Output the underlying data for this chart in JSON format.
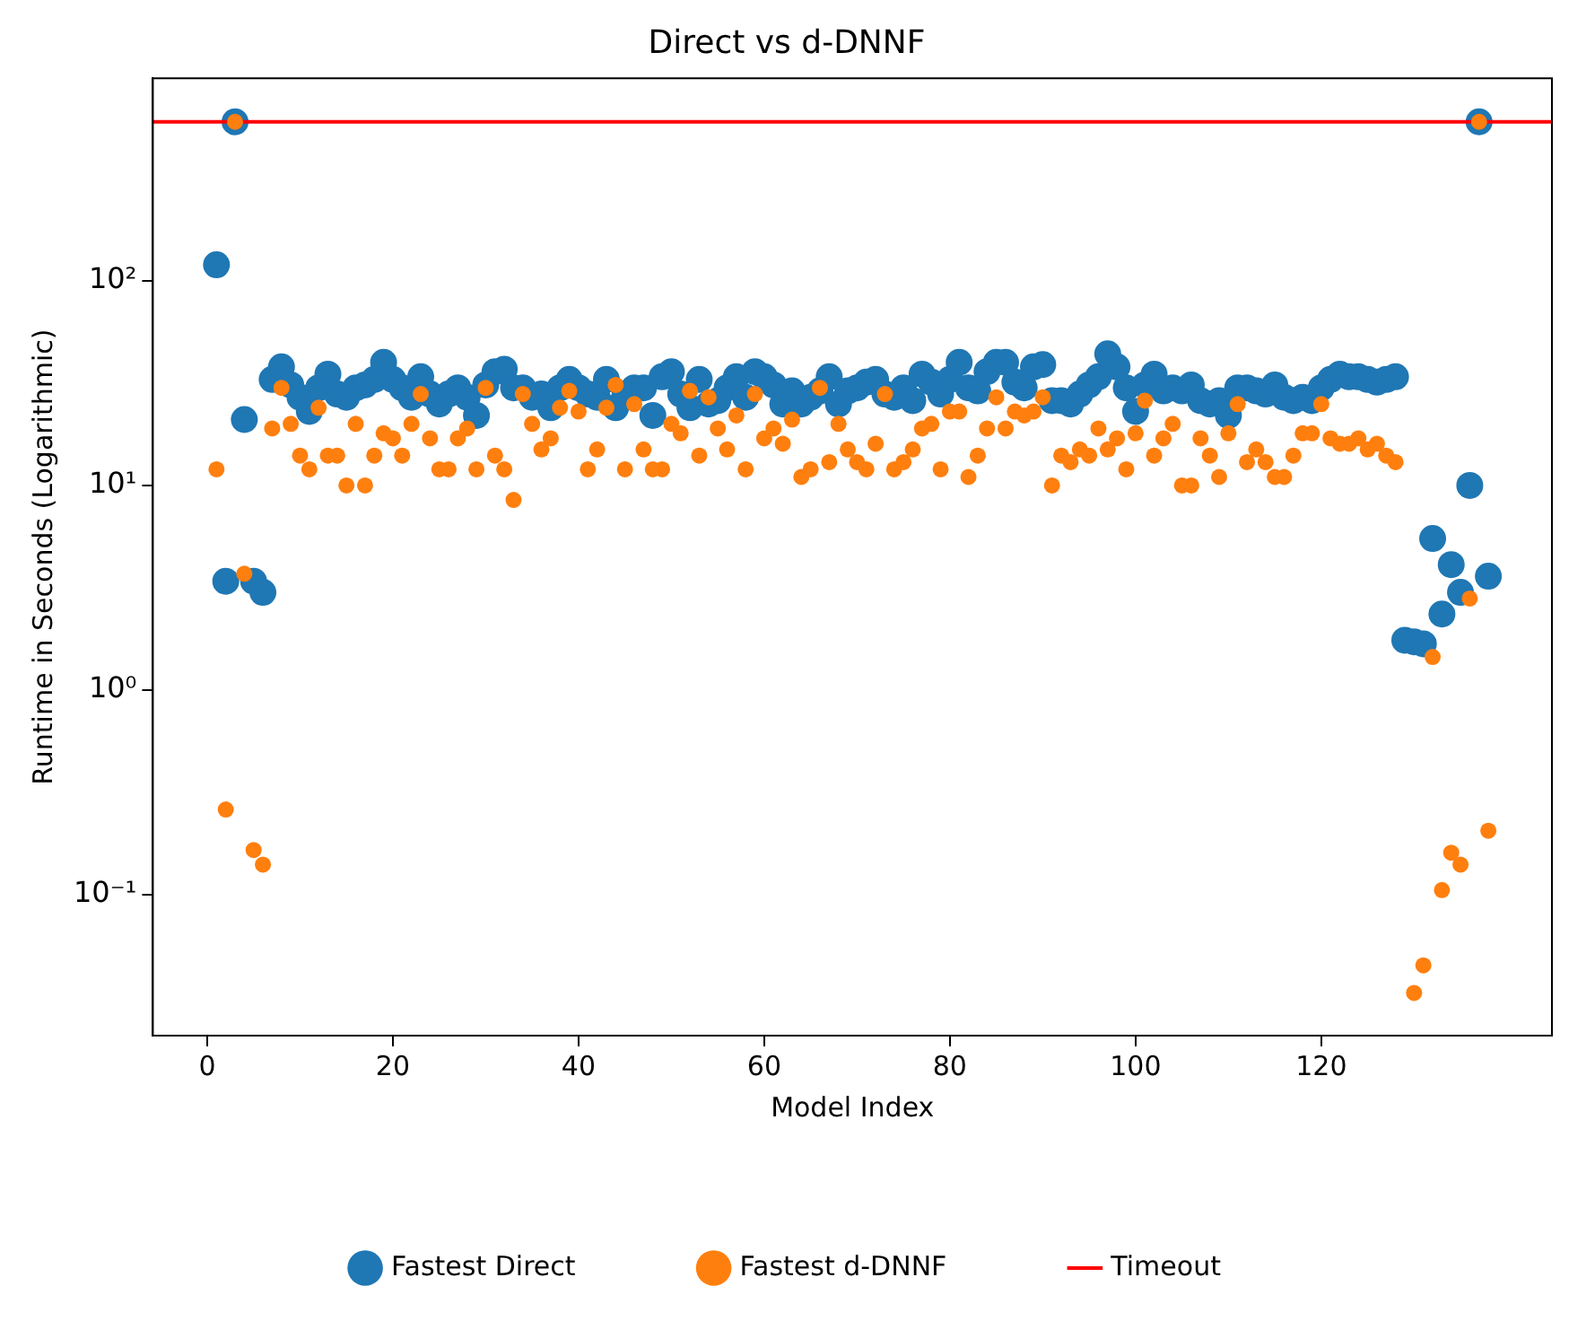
{
  "chart_data": {
    "type": "scatter",
    "title": "Direct vs d-DNNF",
    "xlabel": "Model Index",
    "ylabel": "Runtime in Seconds (Logarithmic)",
    "x": [
      1,
      2,
      3,
      4,
      5,
      6,
      7,
      8,
      9,
      10,
      11,
      12,
      13,
      14,
      15,
      16,
      17,
      18,
      19,
      20,
      21,
      22,
      23,
      24,
      25,
      26,
      27,
      28,
      29,
      30,
      31,
      32,
      33,
      34,
      35,
      36,
      37,
      38,
      39,
      40,
      41,
      42,
      43,
      44,
      45,
      46,
      47,
      48,
      49,
      50,
      51,
      52,
      53,
      54,
      55,
      56,
      57,
      58,
      59,
      60,
      61,
      62,
      63,
      64,
      65,
      66,
      67,
      68,
      69,
      70,
      71,
      72,
      73,
      74,
      75,
      76,
      77,
      78,
      79,
      80,
      81,
      82,
      83,
      84,
      85,
      86,
      87,
      88,
      89,
      90,
      91,
      92,
      93,
      94,
      95,
      96,
      97,
      98,
      99,
      100,
      101,
      102,
      103,
      104,
      105,
      106,
      107,
      108,
      109,
      110,
      111,
      112,
      113,
      114,
      115,
      116,
      117,
      118,
      119,
      120,
      121,
      122,
      123,
      124,
      125,
      126,
      127,
      128,
      129,
      130,
      131,
      132,
      133,
      134,
      135,
      136,
      137,
      138
    ],
    "series": [
      {
        "name": "Fastest Direct",
        "color": "#1f77b4",
        "values": [
          120,
          3.4,
          600,
          21,
          3.4,
          3.0,
          33,
          38,
          31,
          27,
          23,
          30,
          35,
          28,
          27,
          30,
          31,
          33,
          40,
          33,
          30,
          27,
          34,
          28,
          25,
          28,
          30,
          27,
          22,
          31,
          36,
          37,
          30,
          30,
          27,
          28,
          24,
          30,
          33,
          30,
          28,
          27,
          33,
          24,
          28,
          30,
          30,
          22,
          34,
          36,
          28,
          24,
          33,
          25,
          26,
          30,
          34,
          27,
          36,
          34,
          31,
          25,
          29,
          25,
          27,
          29,
          34,
          25,
          29,
          30,
          32,
          33,
          28,
          27,
          30,
          26,
          35,
          32,
          28,
          33,
          40,
          30,
          29,
          36,
          40,
          40,
          32,
          30,
          38,
          39,
          26,
          26,
          25,
          28,
          31,
          34,
          44,
          38,
          30,
          23,
          31,
          35,
          29,
          30,
          29,
          31,
          26,
          25,
          26,
          22,
          30,
          30,
          29,
          28,
          31,
          27,
          26,
          27,
          26,
          30,
          33,
          35,
          34,
          34,
          33,
          32,
          33,
          34,
          1.75,
          1.72,
          1.68,
          5.5,
          2.35,
          4.1,
          3.0,
          10,
          600,
          3.6
        ]
      },
      {
        "name": "Fastest d-DNNF",
        "color": "#ff7f0e",
        "values": [
          12,
          0.26,
          600,
          3.7,
          0.165,
          0.14,
          19,
          30,
          20,
          14,
          12,
          24,
          14,
          14,
          10,
          20,
          10,
          14,
          18,
          17,
          14,
          20,
          28,
          17,
          12,
          12,
          17,
          19,
          12,
          30,
          14,
          12,
          8.5,
          28,
          20,
          15,
          17,
          24,
          29,
          23,
          12,
          15,
          24,
          31,
          12,
          25,
          15,
          12,
          12,
          20,
          18,
          29,
          14,
          27,
          19,
          15,
          22,
          12,
          28,
          17,
          19,
          16,
          21,
          11,
          12,
          30,
          13,
          20,
          15,
          13,
          12,
          16,
          28,
          12,
          13,
          15,
          19,
          20,
          12,
          23,
          23,
          11,
          14,
          19,
          27,
          19,
          23,
          22,
          23,
          27,
          10,
          14,
          13,
          15,
          14,
          19,
          15,
          17,
          12,
          18,
          26,
          14,
          17,
          20,
          10,
          10,
          17,
          14,
          11,
          18,
          25,
          13,
          15,
          13,
          11,
          11,
          14,
          18,
          18,
          25,
          17,
          16,
          16,
          17,
          15,
          16,
          14,
          13,
          null,
          0.033,
          0.045,
          1.45,
          0.105,
          0.16,
          0.14,
          2.8,
          600,
          0.205
        ]
      }
    ],
    "ref_lines": [
      {
        "axis": "y",
        "value": 600,
        "label": "Timeout",
        "color": "#ff0000"
      }
    ],
    "xlim": [
      -5.85,
      144.85
    ],
    "xticks": [
      0,
      20,
      40,
      60,
      80,
      100,
      120
    ],
    "log": true,
    "ylim": [
      0.0204,
      980
    ],
    "yticks": [
      {
        "value": 0.1,
        "label": "10⁻¹"
      },
      {
        "value": 1,
        "label": "10⁰"
      },
      {
        "value": 10,
        "label": "10¹"
      },
      {
        "value": 100,
        "label": "10²"
      }
    ],
    "marker": "circle",
    "legend": "bottom",
    "grid": false
  }
}
